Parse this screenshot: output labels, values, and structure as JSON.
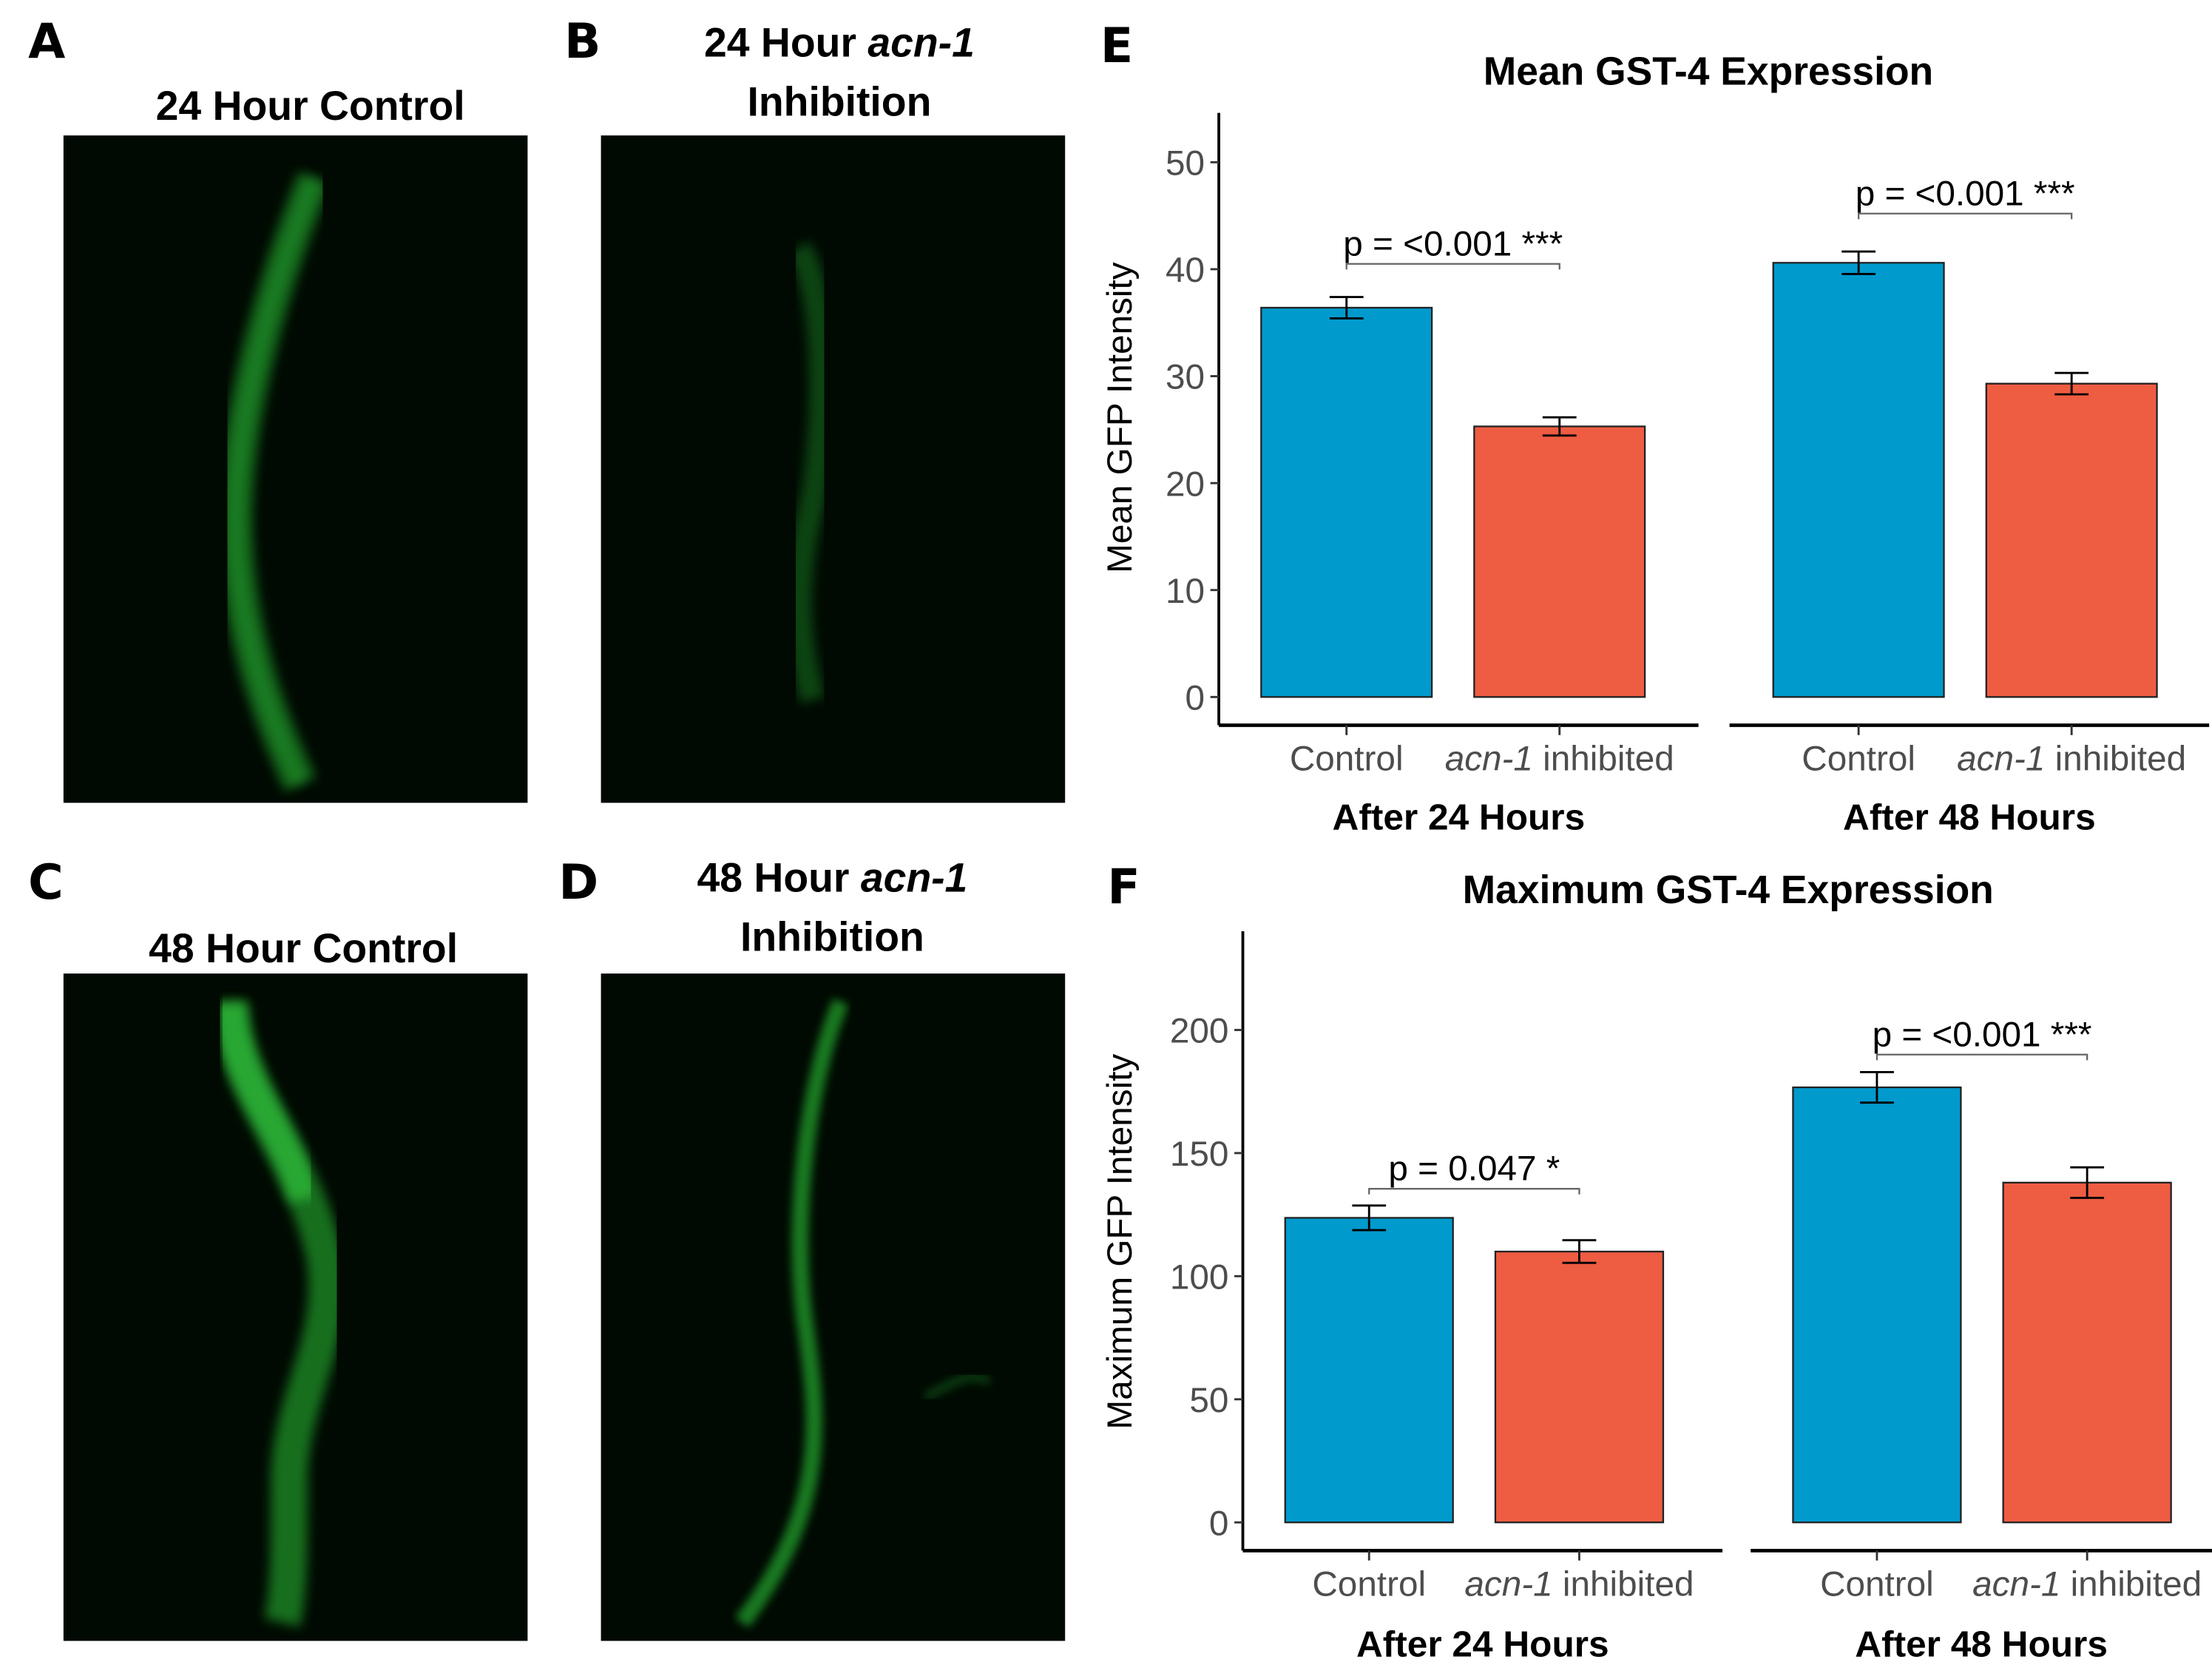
{
  "panels": [
    {
      "letter": "A",
      "title_parts": [
        "24 Hour Control"
      ]
    },
    {
      "letter": "B",
      "title_parts": [
        "24 Hour ",
        "acn-1",
        "Inhibition"
      ]
    },
    {
      "letter": "C",
      "title_parts": [
        "48 Hour Control"
      ]
    },
    {
      "letter": "D",
      "title_parts": [
        "48 Hour ",
        "acn-1",
        "Inhibition"
      ]
    }
  ],
  "colors": {
    "control": "#009ACD",
    "inhibited": "#EE5C42",
    "micro_bg": "#000a02",
    "gfp": "#2fd43a"
  },
  "chart_data": [
    {
      "letter": "E",
      "type": "bar",
      "title": "Mean GST-4 Expression",
      "ylabel": "Mean GFP Intensity",
      "yticks": [
        0,
        10,
        20,
        30,
        40,
        50
      ],
      "ylim": [
        0,
        50
      ],
      "grid": false,
      "facets": [
        "After 24 Hours",
        "After 48 Hours"
      ],
      "categories": [
        "Control",
        "acn-1 inhibited"
      ],
      "category_parts": [
        [
          "Control",
          ""
        ],
        [
          "acn-1",
          " inhibited"
        ]
      ],
      "values": [
        [
          36.4,
          25.3
        ],
        [
          40.6,
          29.3
        ]
      ],
      "errors": [
        [
          1.0,
          0.85
        ],
        [
          1.05,
          1.0
        ]
      ],
      "annotations": [
        "p = <0.001 ***",
        "p = <0.001 ***"
      ],
      "annotation_levels": [
        40.5,
        45.2
      ]
    },
    {
      "letter": "F",
      "type": "bar",
      "title": "Maximum GST-4 Expression",
      "ylabel": "Maximum GFP Intensity",
      "yticks": [
        0,
        50,
        100,
        150,
        200
      ],
      "ylim": [
        0,
        200
      ],
      "grid": false,
      "facets": [
        "After 24 Hours",
        "After 48 Hours"
      ],
      "categories": [
        "Control",
        "acn-1 inhibited"
      ],
      "category_parts": [
        [
          "Control",
          ""
        ],
        [
          "acn-1",
          " inhibited"
        ]
      ],
      "values": [
        [
          123.7,
          110.0
        ],
        [
          176.7,
          138.0
        ]
      ],
      "errors": [
        [
          5.0,
          4.6
        ],
        [
          6.2,
          6.2
        ]
      ],
      "annotations": [
        "p = 0.047 *",
        "p = <0.001 ***"
      ],
      "annotation_levels": [
        135.5,
        190
      ]
    }
  ]
}
